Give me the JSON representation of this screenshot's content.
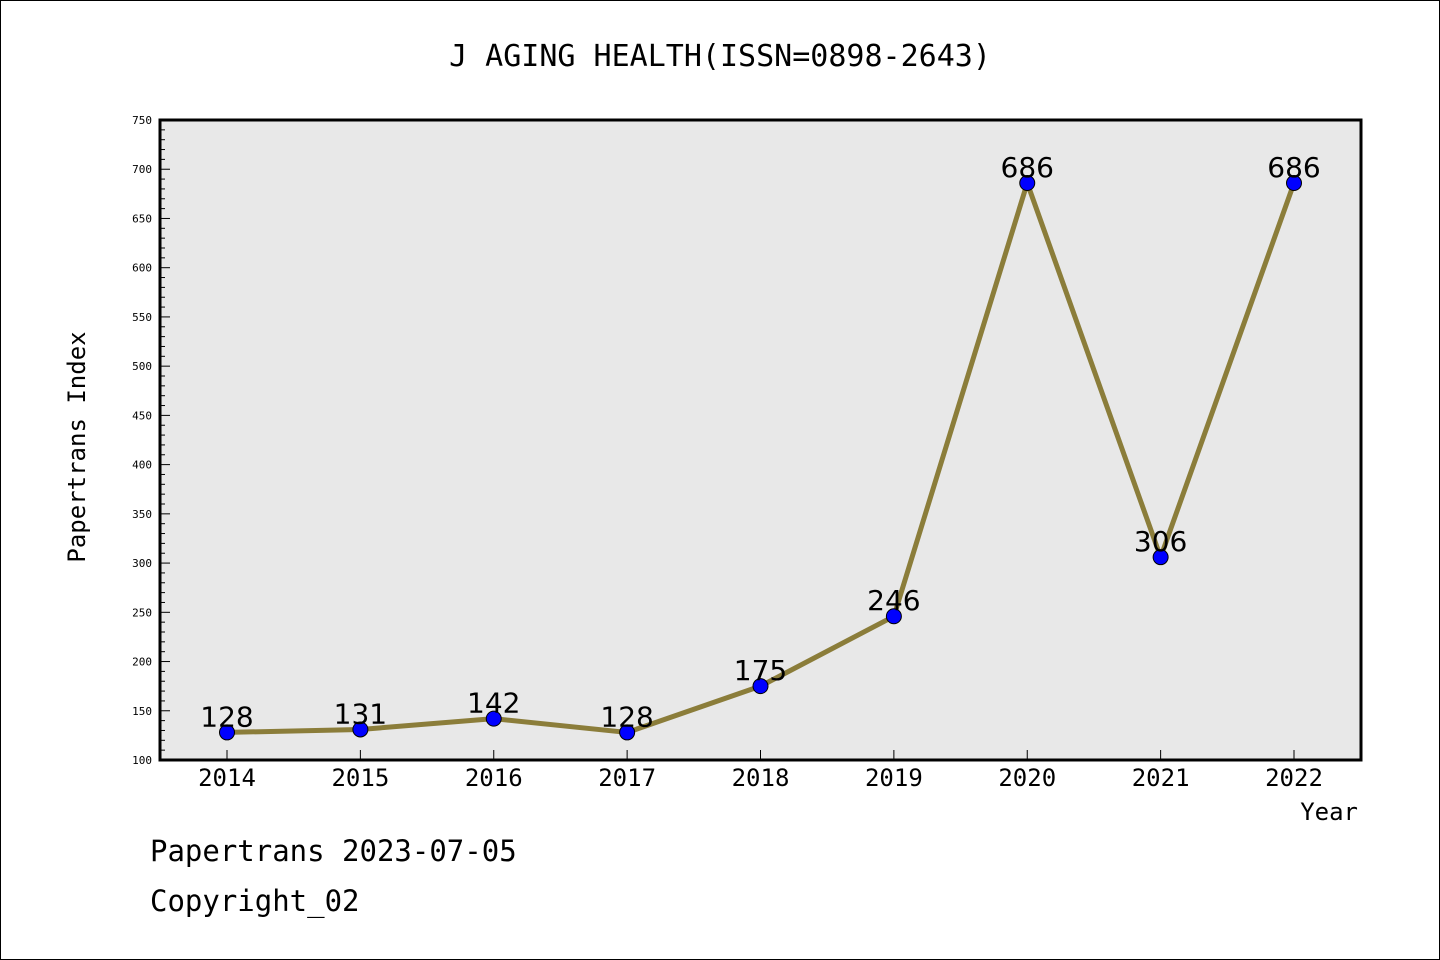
{
  "chart_data": {
    "type": "line",
    "title": "J AGING HEALTH(ISSN=0898-2643)",
    "xlabel": "Year",
    "ylabel": "Papertrans Index",
    "categories": [
      "2014",
      "2015",
      "2016",
      "2017",
      "2018",
      "2019",
      "2020",
      "2021",
      "2022"
    ],
    "values": [
      128,
      131,
      142,
      128,
      175,
      246,
      686,
      306,
      686
    ],
    "data_labels": [
      "128",
      "131",
      "142",
      "128",
      "175",
      "246",
      "686",
      "306",
      "686"
    ],
    "ylim": [
      100,
      750
    ],
    "y_ticks": [
      "100",
      "150",
      "200",
      "250",
      "300",
      "350",
      "400",
      "450",
      "500",
      "550",
      "600",
      "650",
      "700",
      "750"
    ],
    "grid": false,
    "line_color": "#8b7d3a",
    "marker_color": "#0000ff",
    "plot_background": "#e8e8e8"
  },
  "footer": {
    "source": "Papertrans 2023-07-05",
    "copyright": "Copyright_02"
  }
}
